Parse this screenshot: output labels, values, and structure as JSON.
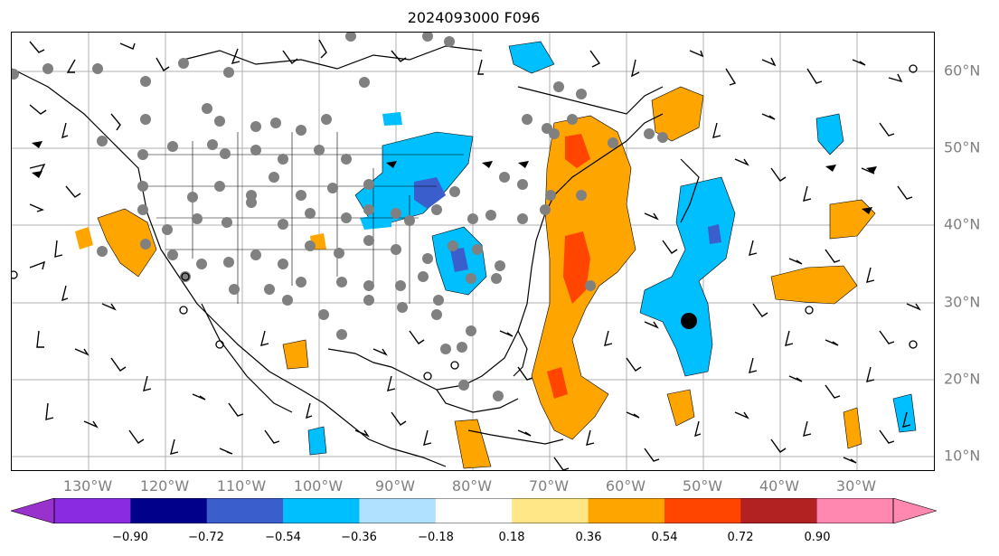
{
  "title": "2024093000 F096",
  "map": {
    "lat_labels": [
      "60°N",
      "50°N",
      "40°N",
      "30°N",
      "20°N",
      "10°N"
    ],
    "lon_labels": [
      "130°W",
      "120°W",
      "110°W",
      "100°W",
      "90°W",
      "80°W",
      "70°W",
      "60°W",
      "50°W",
      "40°W",
      "30°W"
    ],
    "layers": [
      "coastlines",
      "country-borders",
      "state-borders",
      "gridlines",
      "filled-contours",
      "wind-barbs",
      "gray-station-dots"
    ],
    "marker": {
      "name": "large-black-dot",
      "color": "#000000"
    }
  },
  "colorbar": {
    "ticks": [
      "−0.90",
      "−0.72",
      "−0.54",
      "−0.36",
      "−0.18",
      "0.18",
      "0.36",
      "0.54",
      "0.72",
      "0.90"
    ],
    "colors": {
      "under": "#9932cc",
      "bins": [
        "#00008b",
        "#3a5fcd",
        "#00bfff",
        "#b0e2ff",
        "#ffffff",
        "#ffe787",
        "#ffa500",
        "#ff4500",
        "#b22222"
      ],
      "over": "#ff88b0",
      "under_bin": "#8a2be2"
    }
  }
}
